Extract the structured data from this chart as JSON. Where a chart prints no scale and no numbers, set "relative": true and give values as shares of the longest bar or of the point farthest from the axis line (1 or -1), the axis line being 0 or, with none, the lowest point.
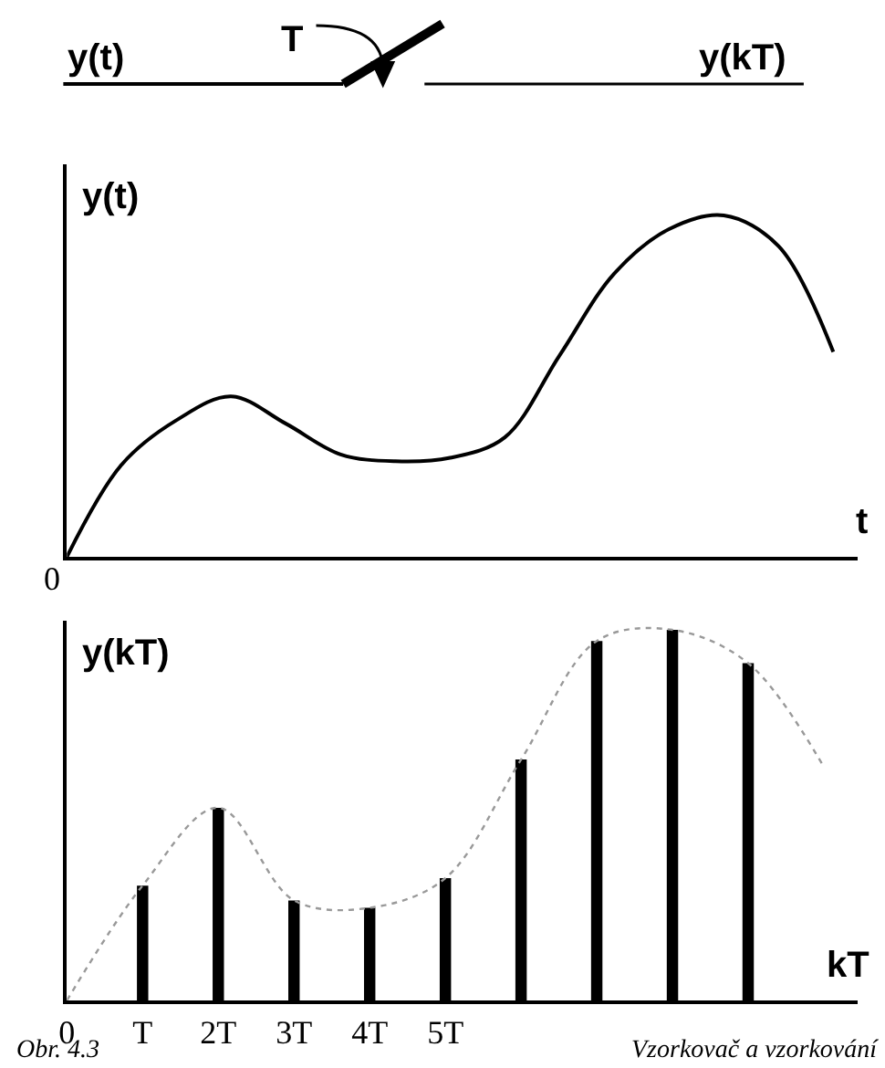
{
  "chart_data": [
    {
      "type": "line",
      "relative": true,
      "xlabel": "t",
      "ylabel": "y(t)",
      "legend": false,
      "line_style": "solid",
      "marker": "none",
      "categories": [
        null,
        null,
        null,
        null,
        null,
        null,
        null,
        null,
        null,
        null,
        null,
        null,
        null,
        null,
        null
      ],
      "series": [
        {
          "color": "#000000",
          "values": [
            0,
            0.27,
            0.4,
            0.47,
            0.39,
            0.3,
            0.28,
            0.29,
            0.35,
            0.59,
            0.83,
            0.96,
            1.0,
            0.91,
            0.6
          ]
        }
      ],
      "annotations": [
        "y(t)",
        "T",
        "y(kT)",
        "0"
      ]
    },
    {
      "type": "bar",
      "relative": true,
      "xlabel": "kT",
      "ylabel": "y(kT)",
      "legend": false,
      "categories": [
        "0",
        "T",
        "2T",
        "3T",
        "4T",
        "5T",
        null,
        null,
        null,
        null,
        null
      ],
      "series": [
        {
          "type": "bar",
          "color": "#000000",
          "values": [
            null,
            0.31,
            0.52,
            0.27,
            0.25,
            0.33,
            0.65,
            0.97,
            1.0,
            0.91,
            null
          ]
        },
        {
          "type": "line",
          "color": "#999999",
          "line_style": "dotted",
          "values": [
            0,
            0.31,
            0.52,
            0.27,
            0.25,
            0.33,
            0.65,
            0.97,
            1.0,
            0.91,
            0.63
          ]
        }
      ],
      "annotations": [
        "Obr. 4.3",
        "Vzorkovač a vzorkování"
      ]
    }
  ]
}
